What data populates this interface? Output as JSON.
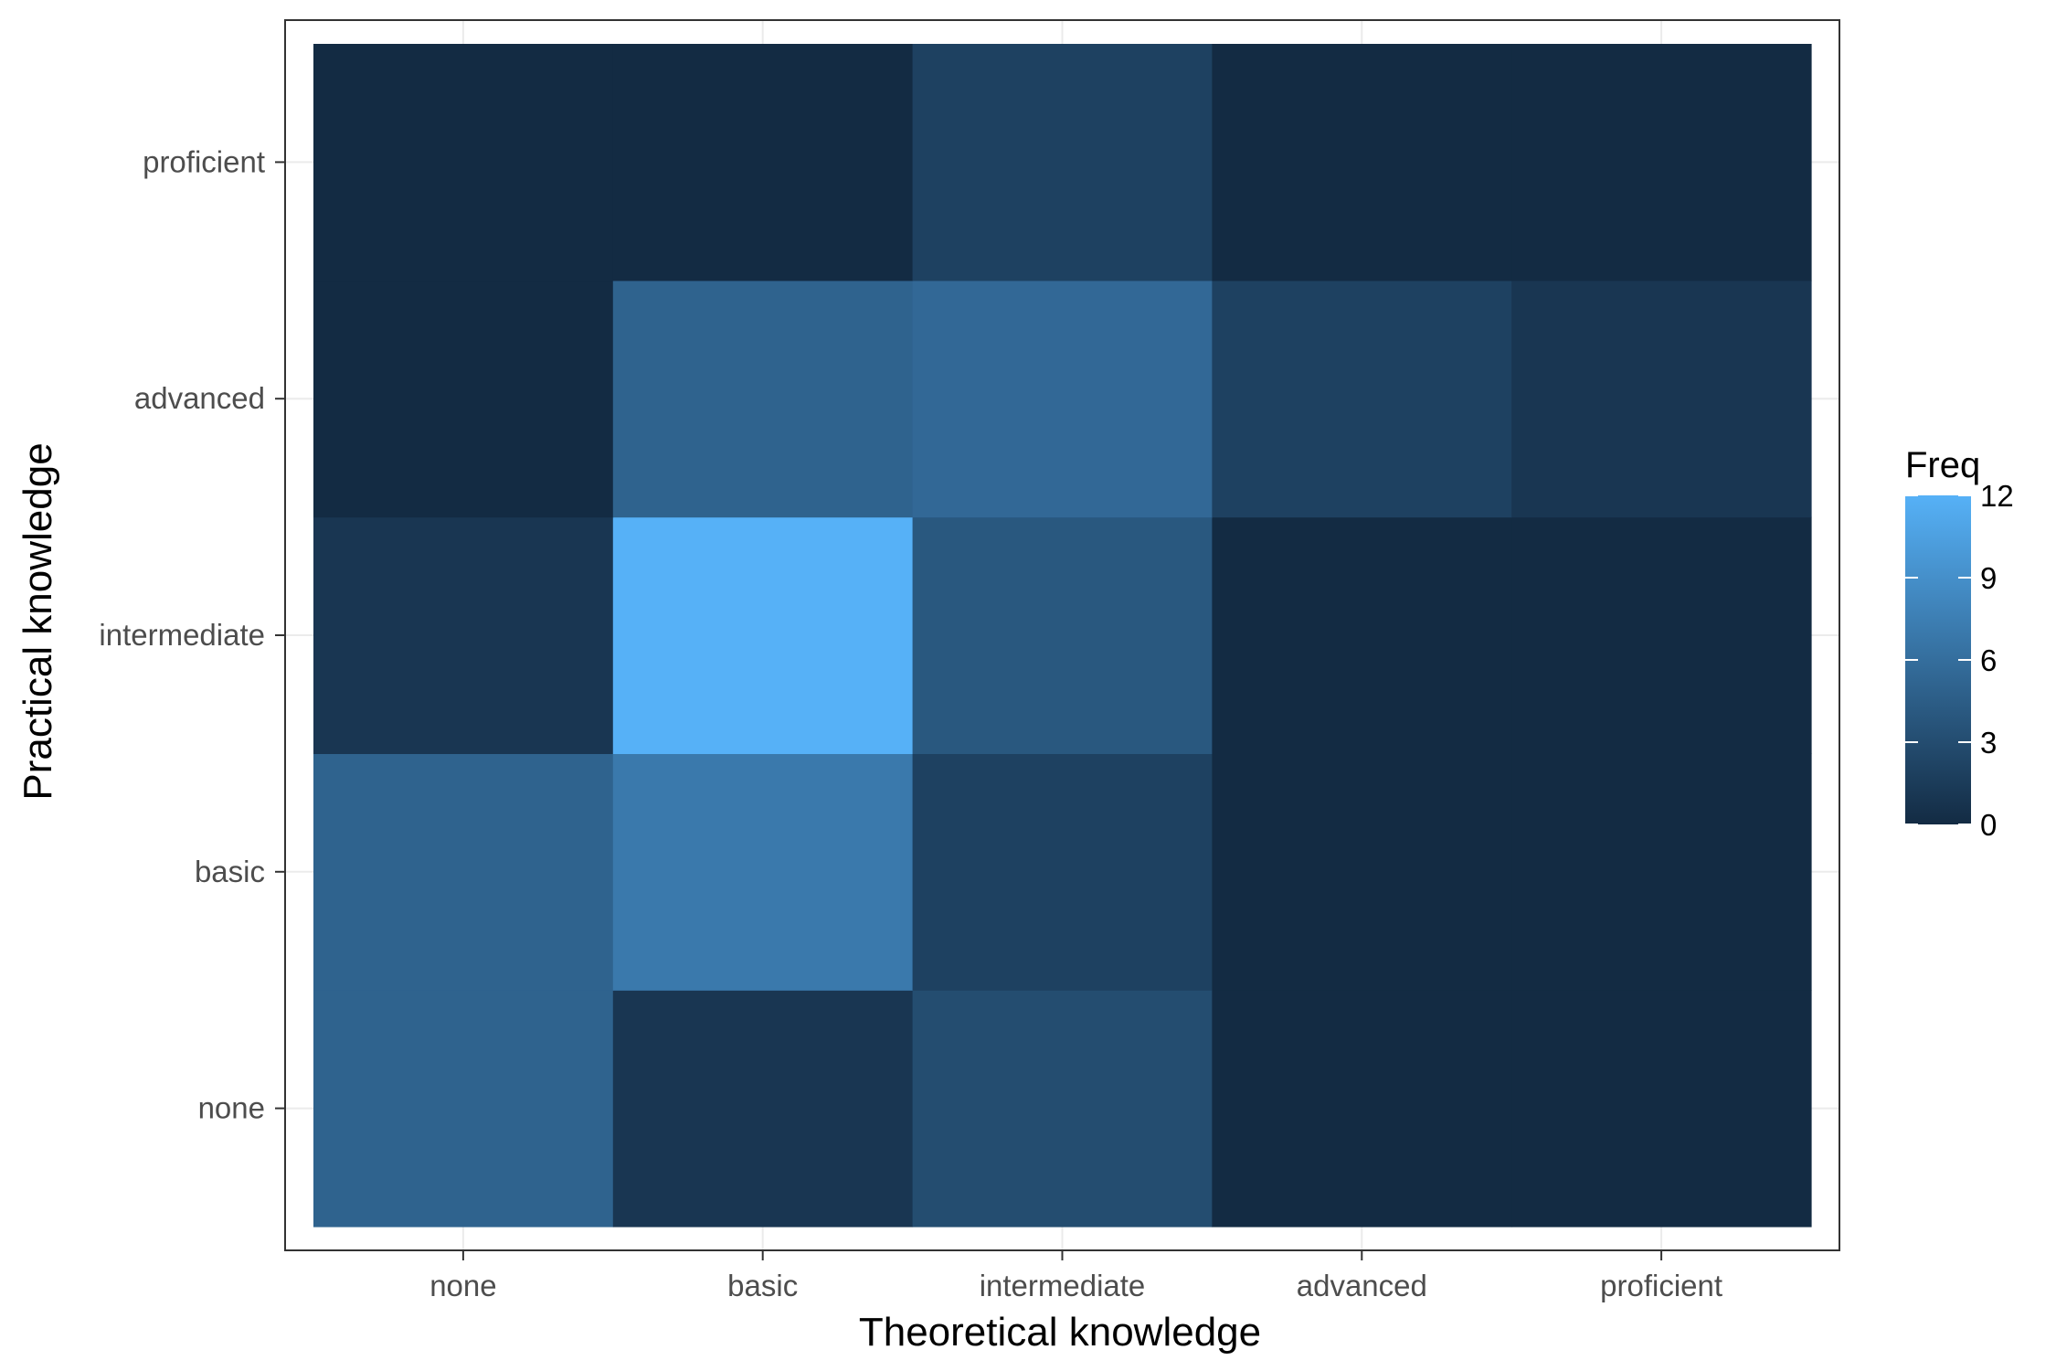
{
  "chart_data": {
    "type": "heatmap",
    "xlabel": "Theoretical knowledge",
    "ylabel": "Practical knowledge",
    "x_categories": [
      "none",
      "basic",
      "intermediate",
      "advanced",
      "proficient"
    ],
    "y_categories": [
      "none",
      "basic",
      "intermediate",
      "advanced",
      "proficient"
    ],
    "cells": [
      {
        "x": "none",
        "y": "none",
        "value": 5
      },
      {
        "x": "basic",
        "y": "none",
        "value": 1
      },
      {
        "x": "intermediate",
        "y": "none",
        "value": 3
      },
      {
        "x": "advanced",
        "y": "none",
        "value": 0
      },
      {
        "x": "proficient",
        "y": "none",
        "value": 0
      },
      {
        "x": "none",
        "y": "basic",
        "value": 5
      },
      {
        "x": "basic",
        "y": "basic",
        "value": 7
      },
      {
        "x": "intermediate",
        "y": "basic",
        "value": 2
      },
      {
        "x": "advanced",
        "y": "basic",
        "value": 0
      },
      {
        "x": "proficient",
        "y": "basic",
        "value": 0
      },
      {
        "x": "none",
        "y": "intermediate",
        "value": 1
      },
      {
        "x": "basic",
        "y": "intermediate",
        "value": 12
      },
      {
        "x": "intermediate",
        "y": "intermediate",
        "value": 4
      },
      {
        "x": "advanced",
        "y": "intermediate",
        "value": 0
      },
      {
        "x": "proficient",
        "y": "intermediate",
        "value": 0
      },
      {
        "x": "none",
        "y": "advanced",
        "value": 0
      },
      {
        "x": "basic",
        "y": "advanced",
        "value": 5
      },
      {
        "x": "intermediate",
        "y": "advanced",
        "value": 5.5
      },
      {
        "x": "advanced",
        "y": "advanced",
        "value": 2
      },
      {
        "x": "proficient",
        "y": "advanced",
        "value": 1
      },
      {
        "x": "none",
        "y": "proficient",
        "value": 0
      },
      {
        "x": "basic",
        "y": "proficient",
        "value": 0
      },
      {
        "x": "intermediate",
        "y": "proficient",
        "value": 2
      },
      {
        "x": "advanced",
        "y": "proficient",
        "value": 0
      },
      {
        "x": "proficient",
        "y": "proficient",
        "value": 0
      }
    ],
    "legend": {
      "title": "Freq",
      "placement": "right",
      "breaks": [
        0,
        3,
        6,
        9,
        12
      ],
      "break_labels": [
        "0",
        "3",
        "6",
        "9",
        "12"
      ],
      "range": [
        0,
        12
      ],
      "low_color": "#132B43",
      "high_color": "#56B1F7"
    },
    "grid": true,
    "colors": {
      "panel_border": "#333333",
      "grid": "#ebebeb",
      "tick": "#333333"
    }
  }
}
